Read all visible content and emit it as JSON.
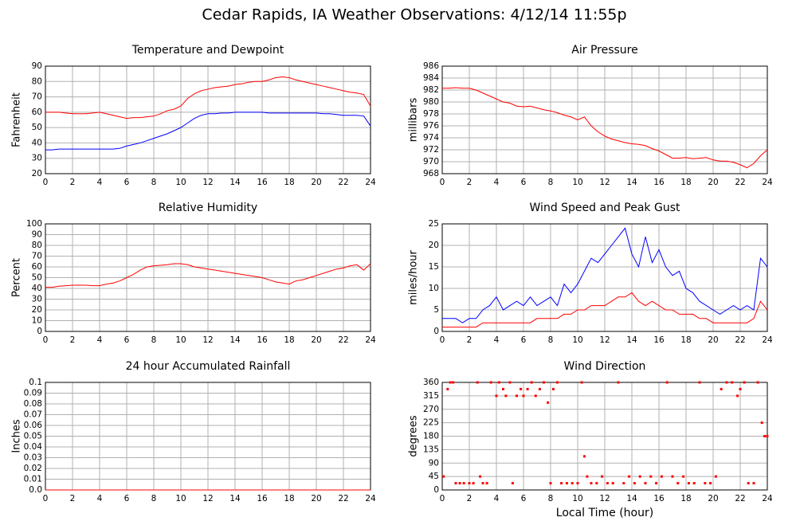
{
  "title": "Cedar Rapids, IA Weather Observations: 4/12/14 11:55p",
  "chart_data": [
    {
      "type": "line",
      "title": "Temperature and Dewpoint",
      "ylabel": "Fahrenheit",
      "grid": true,
      "xlim": [
        0,
        24
      ],
      "xticks": [
        0,
        2,
        4,
        6,
        8,
        10,
        12,
        14,
        16,
        18,
        20,
        22,
        24
      ],
      "ylim": [
        20,
        90
      ],
      "yticks": [
        20,
        30,
        40,
        50,
        60,
        70,
        80,
        90
      ],
      "x": [
        0,
        0.5,
        1,
        1.5,
        2,
        2.5,
        3,
        3.5,
        4,
        4.5,
        5,
        5.5,
        6,
        6.5,
        7,
        7.5,
        8,
        8.5,
        9,
        9.5,
        10,
        10.5,
        11,
        11.5,
        12,
        12.5,
        13,
        13.5,
        14,
        14.5,
        15,
        15.5,
        16,
        16.5,
        17,
        17.5,
        18,
        18.5,
        19,
        19.5,
        20,
        20.5,
        21,
        21.5,
        22,
        22.5,
        23,
        23.5,
        24
      ],
      "series": [
        {
          "color": "#ff0000",
          "values": [
            60,
            60,
            60,
            59.5,
            59,
            59,
            59,
            59.5,
            60,
            59,
            58,
            57,
            56,
            56.5,
            56.5,
            57,
            57.5,
            59,
            61,
            62,
            64,
            69,
            72,
            74,
            75,
            76,
            76.5,
            77,
            78,
            78.5,
            79.5,
            80,
            80,
            81,
            82.5,
            83,
            82.5,
            81,
            80,
            79,
            78,
            77,
            76,
            75,
            74,
            73,
            72.5,
            71.5,
            64
          ]
        },
        {
          "color": "#0000ff",
          "values": [
            35.5,
            35.5,
            36,
            36,
            36,
            36,
            36,
            36,
            36,
            36,
            36,
            36.5,
            38,
            39,
            40,
            41.5,
            43,
            44.5,
            46,
            48,
            50,
            53,
            56,
            58,
            59,
            59,
            59.5,
            59.5,
            60,
            60,
            60,
            60,
            60,
            59.5,
            59.5,
            59.5,
            59.5,
            59.5,
            59.5,
            59.5,
            59.5,
            59,
            59,
            58.5,
            58,
            58,
            58,
            57.5,
            51
          ]
        }
      ]
    },
    {
      "type": "line",
      "title": "Air Pressure",
      "ylabel": "millibars",
      "grid": true,
      "xlim": [
        0,
        24
      ],
      "xticks": [
        0,
        2,
        4,
        6,
        8,
        10,
        12,
        14,
        16,
        18,
        20,
        22,
        24
      ],
      "ylim": [
        968,
        986
      ],
      "yticks": [
        968,
        970,
        972,
        974,
        976,
        978,
        980,
        982,
        984,
        986
      ],
      "x": [
        0,
        0.5,
        1,
        1.5,
        2,
        2.5,
        3,
        3.5,
        4,
        4.5,
        5,
        5.5,
        6,
        6.5,
        7,
        7.5,
        8,
        8.5,
        9,
        9.5,
        10,
        10.5,
        11,
        11.5,
        12,
        12.5,
        13,
        13.5,
        14,
        14.5,
        15,
        15.5,
        16,
        16.5,
        17,
        17.5,
        18,
        18.5,
        19,
        19.5,
        20,
        20.5,
        21,
        21.5,
        22,
        22.5,
        23,
        23.5,
        24
      ],
      "series": [
        {
          "color": "#ff0000",
          "values": [
            982.3,
            982.3,
            982.4,
            982.3,
            982.3,
            982,
            981.5,
            981,
            980.5,
            980,
            979.8,
            979.3,
            979.2,
            979.3,
            979,
            978.7,
            978.5,
            978.2,
            977.8,
            977.5,
            977,
            977.5,
            976,
            975,
            974.3,
            973.8,
            973.5,
            973.2,
            973,
            972.9,
            972.7,
            972.2,
            971.8,
            971.2,
            970.6,
            970.6,
            970.7,
            970.5,
            970.6,
            970.7,
            970.3,
            970.1,
            970.1,
            969.9,
            969.5,
            969,
            969.7,
            971,
            972
          ]
        }
      ]
    },
    {
      "type": "line",
      "title": "Relative Humidity",
      "ylabel": "Percent",
      "grid": true,
      "xlim": [
        0,
        24
      ],
      "xticks": [
        0,
        2,
        4,
        6,
        8,
        10,
        12,
        14,
        16,
        18,
        20,
        22,
        24
      ],
      "ylim": [
        0,
        100
      ],
      "yticks": [
        0,
        10,
        20,
        30,
        40,
        50,
        60,
        70,
        80,
        90,
        100
      ],
      "x": [
        0,
        0.5,
        1,
        1.5,
        2,
        2.5,
        3,
        3.5,
        4,
        4.5,
        5,
        5.5,
        6,
        6.5,
        7,
        7.5,
        8,
        8.5,
        9,
        9.5,
        10,
        10.5,
        11,
        11.5,
        12,
        12.5,
        13,
        13.5,
        14,
        14.5,
        15,
        15.5,
        16,
        16.5,
        17,
        17.5,
        18,
        18.5,
        19,
        19.5,
        20,
        20.5,
        21,
        21.5,
        22,
        22.5,
        23,
        23.5,
        24
      ],
      "series": [
        {
          "color": "#ff0000",
          "values": [
            41,
            41,
            42,
            42.5,
            43,
            43,
            43,
            42.5,
            42.5,
            44,
            45,
            47,
            50,
            53,
            57,
            60,
            61,
            61.5,
            62,
            63,
            63,
            62,
            60,
            59,
            58,
            57,
            56,
            55,
            54,
            53,
            52,
            51,
            50,
            48,
            46,
            45,
            44,
            47,
            48,
            50,
            52,
            54,
            56,
            58,
            59,
            61,
            62,
            57,
            63
          ]
        }
      ]
    },
    {
      "type": "line",
      "title": "Wind Speed and Peak Gust",
      "ylabel": "miles/hour",
      "grid": true,
      "xlim": [
        0,
        24
      ],
      "xticks": [
        0,
        2,
        4,
        6,
        8,
        10,
        12,
        14,
        16,
        18,
        20,
        22,
        24
      ],
      "ylim": [
        0,
        25
      ],
      "yticks": [
        0,
        5,
        10,
        15,
        20,
        25
      ],
      "x": [
        0,
        0.5,
        1,
        1.5,
        2,
        2.5,
        3,
        3.5,
        4,
        4.5,
        5,
        5.5,
        6,
        6.5,
        7,
        7.5,
        8,
        8.5,
        9,
        9.5,
        10,
        10.5,
        11,
        11.5,
        12,
        12.5,
        13,
        13.5,
        14,
        14.5,
        15,
        15.5,
        16,
        16.5,
        17,
        17.5,
        18,
        18.5,
        19,
        19.5,
        20,
        20.5,
        21,
        21.5,
        22,
        22.5,
        23,
        23.5,
        24
      ],
      "series": [
        {
          "color": "#0000ff",
          "values": [
            3,
            3,
            3,
            2,
            3,
            3,
            5,
            6,
            8,
            5,
            6,
            7,
            6,
            8,
            6,
            7,
            8,
            6,
            11,
            9,
            11,
            14,
            17,
            16,
            18,
            20,
            22,
            24,
            18,
            15,
            22,
            16,
            19,
            15,
            13,
            14,
            10,
            9,
            7,
            6,
            5,
            4,
            5,
            6,
            5,
            6,
            5,
            17,
            15
          ]
        },
        {
          "color": "#ff0000",
          "values": [
            1,
            1,
            1,
            1,
            1,
            1,
            2,
            2,
            2,
            2,
            2,
            2,
            2,
            2,
            3,
            3,
            3,
            3,
            4,
            4,
            5,
            5,
            6,
            6,
            6,
            7,
            8,
            8,
            9,
            7,
            6,
            7,
            6,
            5,
            5,
            4,
            4,
            4,
            3,
            3,
            2,
            2,
            2,
            2,
            2,
            2,
            3,
            7,
            5
          ]
        }
      ]
    },
    {
      "type": "line",
      "title": "24 hour Accumulated Rainfall",
      "ylabel": "Inches",
      "grid": true,
      "xlim": [
        0,
        24
      ],
      "xticks": [
        0,
        2,
        4,
        6,
        8,
        10,
        12,
        14,
        16,
        18,
        20,
        22,
        24
      ],
      "ylim": [
        0,
        0.1
      ],
      "yticks": [
        {
          "value": 0,
          "label": "0.0"
        },
        0.01,
        0.02,
        0.03,
        0.04,
        0.05,
        0.06,
        0.07,
        0.08,
        0.09,
        0.1
      ],
      "x": [
        0,
        24
      ],
      "series": [
        {
          "color": "#ff0000",
          "values": [
            0,
            0
          ]
        }
      ]
    },
    {
      "type": "scatter",
      "title": "Wind Direction",
      "ylabel": "degrees",
      "xlabel": "Local Time (hour)",
      "grid": true,
      "xlim": [
        0,
        24
      ],
      "xticks": [
        0,
        2,
        4,
        6,
        8,
        10,
        12,
        14,
        16,
        18,
        20,
        22,
        24
      ],
      "ylim": [
        0,
        360
      ],
      "yticks": [
        0,
        45,
        90,
        135,
        180,
        225,
        270,
        315,
        360
      ],
      "x": [
        0.1,
        0.4,
        0.6,
        0.8,
        1,
        1.3,
        1.6,
        2,
        2.3,
        2.6,
        2.8,
        3,
        3.3,
        3.6,
        4,
        4.2,
        4.5,
        4.7,
        5,
        5.2,
        5.5,
        5.8,
        6,
        6.3,
        6.6,
        6.9,
        7.2,
        7.5,
        7.8,
        8,
        8.2,
        8.5,
        8.8,
        9.2,
        9.6,
        10,
        10.3,
        10.5,
        10.7,
        11,
        11.4,
        11.8,
        12.2,
        12.6,
        13,
        13.4,
        13.8,
        14.2,
        14.6,
        15,
        15.4,
        15.8,
        16.2,
        16.6,
        17,
        17.4,
        17.8,
        18.2,
        18.6,
        19,
        19.4,
        19.8,
        20.2,
        20.6,
        21,
        21.4,
        21.8,
        22,
        22.3,
        22.6,
        23,
        23.3,
        23.6,
        23.8,
        24
      ],
      "series": [
        {
          "color": "#ff0000",
          "values": [
            45,
            337.5,
            360,
            360,
            22.5,
            22.5,
            22.5,
            22.5,
            22.5,
            360,
            45,
            22.5,
            22.5,
            360,
            315,
            360,
            337.5,
            315,
            360,
            22.5,
            315,
            337.5,
            315,
            337.5,
            360,
            315,
            337.5,
            360,
            292.5,
            22.5,
            337.5,
            360,
            22.5,
            22.5,
            22.5,
            22.5,
            360,
            112.5,
            45,
            22.5,
            22.5,
            45,
            22.5,
            22.5,
            360,
            22.5,
            45,
            22.5,
            45,
            22.5,
            45,
            22.5,
            45,
            360,
            45,
            22.5,
            45,
            22.5,
            22.5,
            360,
            22.5,
            22.5,
            45,
            337.5,
            360,
            360,
            315,
            337.5,
            360,
            22.5,
            22.5,
            360,
            225,
            180,
            180
          ]
        }
      ]
    }
  ]
}
